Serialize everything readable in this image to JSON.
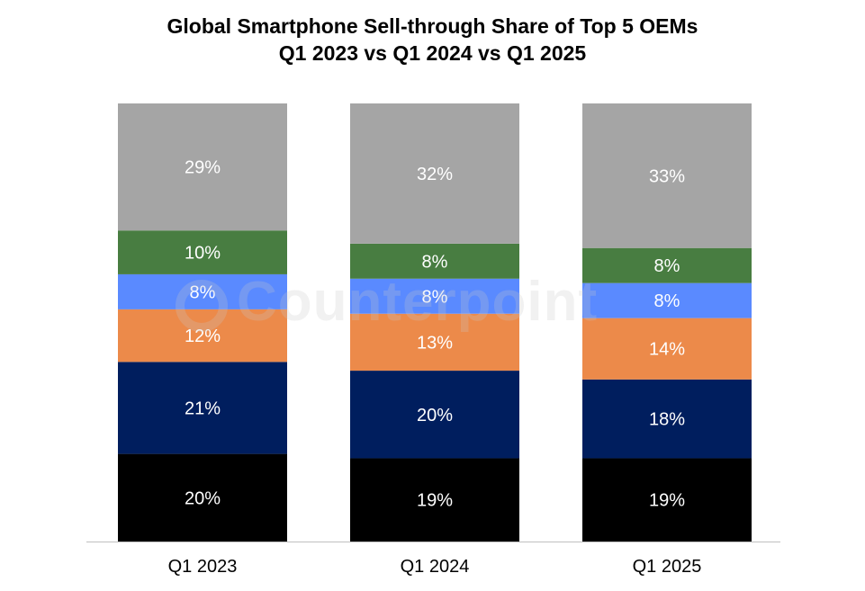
{
  "chart_data": {
    "type": "bar",
    "stacked": true,
    "title": [
      "Global Smartphone Sell-through Share of Top 5 OEMs",
      "Q1 2023 vs Q1 2024 vs Q1 2025"
    ],
    "xlabel": "",
    "ylabel": "",
    "ylim": [
      0,
      100
    ],
    "grid": false,
    "categories": [
      "Q1 2023",
      "Q1 2024",
      "Q1 2025"
    ],
    "series": [
      {
        "values": [
          20,
          19,
          19
        ],
        "color": "#000000",
        "label_color": "#ffffff"
      },
      {
        "values": [
          21,
          20,
          18
        ],
        "color": "#001E5E",
        "label_color": "#ffffff"
      },
      {
        "values": [
          12,
          13,
          14
        ],
        "color": "#EC8A4A",
        "label_color": "#ffffff"
      },
      {
        "values": [
          8,
          8,
          8
        ],
        "color": "#5A8AFF",
        "label_color": "#ffffff"
      },
      {
        "values": [
          10,
          8,
          8
        ],
        "color": "#487D41",
        "label_color": "#ffffff"
      },
      {
        "values": [
          29,
          32,
          33
        ],
        "color": "#A5A5A5",
        "label_color": "#ffffff"
      }
    ],
    "value_format": "percent"
  },
  "watermark": "Counterpoint"
}
